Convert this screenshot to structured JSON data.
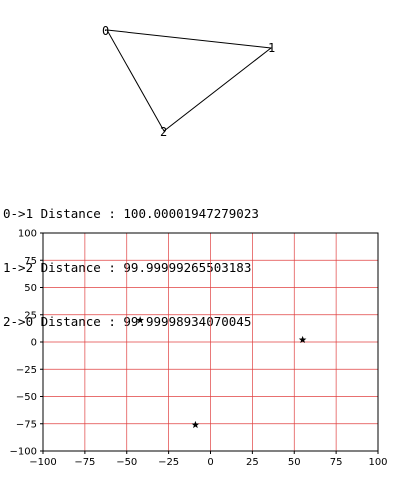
{
  "triangle": {
    "vertex_labels": [
      "0",
      "1",
      "2"
    ]
  },
  "distances": [
    "0->1 Distance : 100.00001947279023",
    "1->2 Distance : 99.99999265503183",
    "2->0 Distance : 99.99998934070045"
  ],
  "chart_data": {
    "type": "scatter",
    "xlim": [
      -100,
      100
    ],
    "ylim": [
      -100,
      100
    ],
    "x_ticks": [
      "−100",
      "−75",
      "−50",
      "−25",
      "0",
      "25",
      "50",
      "75",
      "100"
    ],
    "y_ticks": [
      "100",
      "75",
      "50",
      "25",
      "0",
      "−25",
      "−50",
      "−75",
      "−100"
    ],
    "grid": true,
    "grid_color": "#e04040",
    "marker": "star",
    "marker_color": "#000000",
    "points": [
      {
        "x": -42,
        "y": 20
      },
      {
        "x": 55,
        "y": 2
      },
      {
        "x": -9,
        "y": -76
      }
    ]
  }
}
